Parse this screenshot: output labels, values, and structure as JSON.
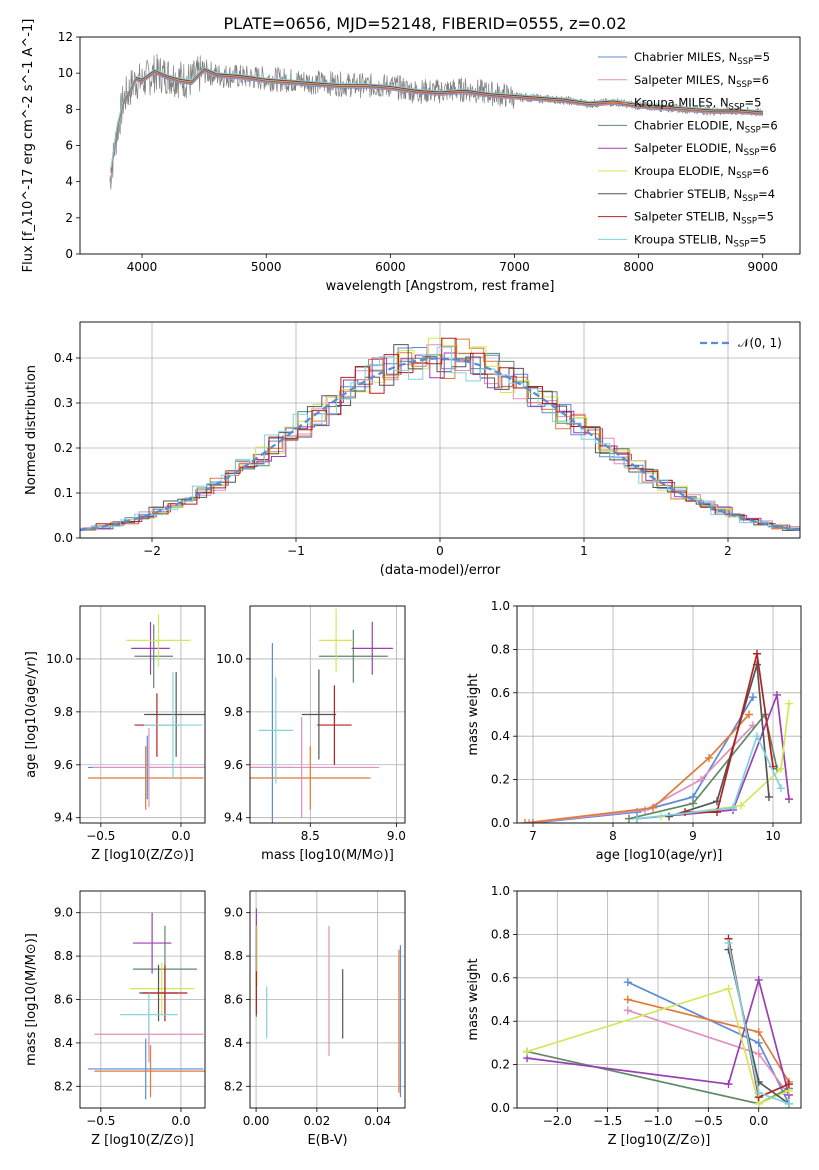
{
  "title": "PLATE=0656, MJD=52148, FIBERID=0555, z=0.02",
  "colors": {
    "chabrier_miles": "#5b8bd6",
    "salpeter_miles": "#e08fbf",
    "kroupa_miles": "#e07b39",
    "chabrier_elodie": "#5f8a68",
    "salpeter_elodie": "#9b3fb5",
    "kroupa_elodie": "#d6e65a",
    "chabrier_stelib": "#555555",
    "salpeter_stelib": "#b22222",
    "kroupa_stelib": "#7fd3dd",
    "data": "#7f7f7f",
    "normal": "#5b8bd6"
  },
  "chart_data": [
    {
      "id": "spectrum",
      "type": "line",
      "xlabel": "wavelength [Angstrom, rest frame]",
      "ylabel": "Flux [f_λ10^-17 erg cm^-2 s^-1 A^-1]",
      "xlim": [
        3500,
        9300
      ],
      "ylim": [
        0,
        12
      ],
      "xticks": [
        4000,
        5000,
        6000,
        7000,
        8000,
        9000
      ],
      "yticks": [
        0,
        2,
        4,
        6,
        8,
        10,
        12
      ],
      "legend_position": "top-right",
      "legend": [
        {
          "key": "chabrier_miles",
          "label": "Chabrier MILES, N",
          "sub": "SSP",
          "suffix": "=5"
        },
        {
          "key": "salpeter_miles",
          "label": "Salpeter MILES, N",
          "sub": "SSP",
          "suffix": "=6"
        },
        {
          "key": "kroupa_miles",
          "label": "Kroupa MILES, N",
          "sub": "SSP",
          "suffix": "=5"
        },
        {
          "key": "chabrier_elodie",
          "label": "Chabrier ELODIE, N",
          "sub": "SSP",
          "suffix": "=6"
        },
        {
          "key": "salpeter_elodie",
          "label": "Salpeter ELODIE, N",
          "sub": "SSP",
          "suffix": "=6"
        },
        {
          "key": "kroupa_elodie",
          "label": "Kroupa ELODIE, N",
          "sub": "SSP",
          "suffix": "=6"
        },
        {
          "key": "chabrier_stelib",
          "label": "Chabrier STELIB, N",
          "sub": "SSP",
          "suffix": "=4"
        },
        {
          "key": "salpeter_stelib",
          "label": "Salpeter STELIB, N",
          "sub": "SSP",
          "suffix": "=5"
        },
        {
          "key": "kroupa_stelib",
          "label": "Kroupa STELIB, N",
          "sub": "SSP",
          "suffix": "=5"
        }
      ],
      "data_spectrum": {
        "x": [
          3750,
          3800,
          3850,
          3900,
          3950,
          4000,
          4100,
          4200,
          4300,
          4400,
          4500,
          4600,
          4800,
          5000,
          5200,
          5400,
          5600,
          5800,
          6000,
          6200,
          6400,
          6600,
          6800,
          7000,
          7200,
          7400,
          7600,
          7800,
          8000,
          8200,
          8400,
          8600,
          8800,
          9000
        ],
        "y": [
          4.5,
          6.8,
          8.5,
          9.1,
          9.6,
          9.5,
          10.0,
          9.9,
          9.7,
          9.6,
          10.1,
          9.9,
          9.8,
          9.7,
          9.6,
          9.5,
          9.4,
          9.3,
          9.3,
          9.0,
          9.0,
          9.1,
          8.9,
          8.7,
          8.6,
          8.5,
          8.3,
          8.4,
          8.2,
          8.1,
          8.0,
          7.9,
          7.9,
          7.8
        ]
      },
      "model_spectrum": {
        "x": [
          3750,
          3800,
          3850,
          3900,
          3950,
          4000,
          4100,
          4200,
          4300,
          4400,
          4500,
          4600,
          4800,
          5000,
          5200,
          5400,
          5600,
          5800,
          6000,
          6200,
          6400,
          6600,
          6800,
          7000,
          7200,
          7400,
          7600,
          7800,
          8000,
          8200,
          8400,
          8600,
          8800,
          9000
        ],
        "y": [
          4.6,
          7.0,
          8.4,
          9.0,
          9.7,
          9.6,
          10.1,
          9.8,
          9.6,
          9.5,
          10.2,
          9.9,
          9.8,
          9.6,
          9.5,
          9.4,
          9.3,
          9.3,
          9.2,
          9.0,
          8.9,
          9.0,
          8.8,
          8.7,
          8.6,
          8.5,
          8.3,
          8.4,
          8.2,
          8.1,
          8.0,
          7.9,
          7.9,
          7.8
        ]
      }
    },
    {
      "id": "residuals",
      "type": "line",
      "xlabel": "(data-model)/error",
      "ylabel": "Normed distribution",
      "xlim": [
        -2.5,
        2.5
      ],
      "ylim": [
        0,
        0.48
      ],
      "xticks": [
        -2,
        -1,
        0,
        1,
        2
      ],
      "yticks": [
        0.0,
        0.1,
        0.2,
        0.3,
        0.4
      ],
      "legend_label": "𝒩(0, 1)",
      "legend_position": "top-right",
      "curve": "normal(0,1)"
    },
    {
      "id": "age_vs_Z",
      "type": "scatter",
      "style": "errorbars",
      "xlabel": "Z [log10(Z/Z⊙)]",
      "ylabel": "age  [log10(age/yr)]",
      "xlim": [
        -0.63,
        0.15
      ],
      "ylim": [
        9.38,
        10.2
      ],
      "xticks": [
        -0.5,
        0.0
      ],
      "yticks": [
        9.4,
        9.6,
        9.8,
        10.0
      ],
      "points": [
        {
          "key": "chabrier_miles",
          "x": -0.21,
          "y": 9.59,
          "xerr": 0.37,
          "yerr": 0.12
        },
        {
          "key": "salpeter_miles",
          "x": -0.2,
          "y": 9.59,
          "xerr": 0.35,
          "yerr": 0.15
        },
        {
          "key": "kroupa_miles",
          "x": -0.22,
          "y": 9.55,
          "xerr": 0.36,
          "yerr": 0.12
        },
        {
          "key": "chabrier_elodie",
          "x": -0.17,
          "y": 10.01,
          "xerr": 0.12,
          "yerr": 0.12
        },
        {
          "key": "salpeter_elodie",
          "x": -0.19,
          "y": 10.04,
          "xerr": 0.12,
          "yerr": 0.1
        },
        {
          "key": "kroupa_elodie",
          "x": -0.14,
          "y": 10.07,
          "xerr": 0.2,
          "yerr": 0.1
        },
        {
          "key": "chabrier_stelib",
          "x": -0.03,
          "y": 9.79,
          "xerr": 0.2,
          "yerr": 0.16
        },
        {
          "key": "salpeter_stelib",
          "x": -0.15,
          "y": 9.75,
          "xerr": 0.14,
          "yerr": 0.12
        },
        {
          "key": "kroupa_stelib",
          "x": -0.05,
          "y": 9.75,
          "xerr": 0.18,
          "yerr": 0.2
        }
      ]
    },
    {
      "id": "age_vs_mass",
      "type": "scatter",
      "style": "errorbars",
      "xlabel": "mass [log10(M/M⊙)]",
      "ylabel": "",
      "xlim": [
        8.15,
        9.05
      ],
      "ylim": [
        9.38,
        10.2
      ],
      "xticks": [
        8.5,
        9.0
      ],
      "yticks": [
        9.4,
        9.6,
        9.8,
        10.0
      ],
      "points": [
        {
          "key": "chabrier_miles",
          "x": 8.28,
          "y": 9.59,
          "xerr": 0.12,
          "yerr": 0.47
        },
        {
          "key": "salpeter_miles",
          "x": 8.45,
          "y": 9.59,
          "xerr": 0.45,
          "yerr": 0.19
        },
        {
          "key": "kroupa_miles",
          "x": 8.5,
          "y": 9.55,
          "xerr": 0.35,
          "yerr": 0.12
        },
        {
          "key": "chabrier_elodie",
          "x": 8.75,
          "y": 10.01,
          "xerr": 0.2,
          "yerr": 0.1
        },
        {
          "key": "salpeter_elodie",
          "x": 8.86,
          "y": 10.04,
          "xerr": 0.12,
          "yerr": 0.1
        },
        {
          "key": "kroupa_elodie",
          "x": 8.65,
          "y": 10.07,
          "xerr": 0.1,
          "yerr": 0.12
        },
        {
          "key": "chabrier_stelib",
          "x": 8.55,
          "y": 9.79,
          "xerr": 0.1,
          "yerr": 0.17
        },
        {
          "key": "salpeter_stelib",
          "x": 8.64,
          "y": 9.75,
          "xerr": 0.1,
          "yerr": 0.15
        },
        {
          "key": "kroupa_stelib",
          "x": 8.3,
          "y": 9.73,
          "xerr": 0.1,
          "yerr": 0.2
        }
      ]
    },
    {
      "id": "weight_vs_age",
      "type": "line",
      "xlabel": "age  [log10(age/yr)]",
      "ylabel": "mass weight",
      "xlim": [
        6.8,
        10.35
      ],
      "ylim": [
        0,
        1.0
      ],
      "xticks": [
        7,
        8,
        9,
        10
      ],
      "yticks": [
        0.0,
        0.2,
        0.4,
        0.6,
        0.8,
        1.0
      ],
      "series": [
        {
          "key": "chabrier_miles",
          "x": [
            7.0,
            8.3,
            9.0,
            9.75
          ],
          "y": [
            0.0,
            0.05,
            0.12,
            0.58
          ]
        },
        {
          "key": "salpeter_miles",
          "x": [
            6.95,
            8.4,
            9.1,
            9.75
          ],
          "y": [
            0.0,
            0.06,
            0.2,
            0.45
          ]
        },
        {
          "key": "kroupa_miles",
          "x": [
            6.9,
            8.5,
            9.2,
            9.7
          ],
          "y": [
            0.0,
            0.07,
            0.3,
            0.5
          ]
        },
        {
          "key": "chabrier_elodie",
          "x": [
            8.2,
            9.0,
            9.9,
            10.05
          ],
          "y": [
            0.02,
            0.09,
            0.5,
            0.25
          ]
        },
        {
          "key": "salpeter_elodie",
          "x": [
            8.3,
            9.5,
            10.05,
            10.2
          ],
          "y": [
            0.02,
            0.06,
            0.59,
            0.11
          ]
        },
        {
          "key": "kroupa_elodie",
          "x": [
            8.6,
            9.6,
            10.1,
            10.2
          ],
          "y": [
            0.03,
            0.08,
            0.25,
            0.55
          ]
        },
        {
          "key": "chabrier_stelib",
          "x": [
            8.7,
            9.3,
            9.8,
            9.95
          ],
          "y": [
            0.03,
            0.1,
            0.73,
            0.12
          ]
        },
        {
          "key": "salpeter_stelib",
          "x": [
            8.9,
            9.3,
            9.8,
            10.0
          ],
          "y": [
            0.05,
            0.05,
            0.78,
            0.26
          ]
        },
        {
          "key": "kroupa_stelib",
          "x": [
            8.3,
            9.5,
            9.8,
            10.1
          ],
          "y": [
            0.02,
            0.07,
            0.4,
            0.16
          ]
        }
      ]
    },
    {
      "id": "mass_vs_Z",
      "type": "scatter",
      "style": "errorbars",
      "xlabel": "Z [log10(Z/Z⊙)]",
      "ylabel": "mass [log10(M/M⊙)]",
      "xlim": [
        -0.63,
        0.15
      ],
      "ylim": [
        8.1,
        9.1
      ],
      "xticks": [
        -0.5,
        0.0
      ],
      "yticks": [
        8.2,
        8.4,
        8.6,
        8.8,
        9.0
      ],
      "points": [
        {
          "key": "chabrier_miles",
          "x": -0.22,
          "y": 8.28,
          "xerr": 0.36,
          "yerr": 0.14
        },
        {
          "key": "salpeter_miles",
          "x": -0.2,
          "y": 8.44,
          "xerr": 0.34,
          "yerr": 0.13
        },
        {
          "key": "kroupa_miles",
          "x": -0.19,
          "y": 8.27,
          "xerr": 0.35,
          "yerr": 0.12
        },
        {
          "key": "chabrier_elodie",
          "x": -0.1,
          "y": 8.74,
          "xerr": 0.2,
          "yerr": 0.2
        },
        {
          "key": "salpeter_elodie",
          "x": -0.18,
          "y": 8.86,
          "xerr": 0.12,
          "yerr": 0.14
        },
        {
          "key": "kroupa_elodie",
          "x": -0.12,
          "y": 8.65,
          "xerr": 0.2,
          "yerr": 0.12
        },
        {
          "key": "chabrier_stelib",
          "x": -0.14,
          "y": 8.63,
          "xerr": 0.12,
          "yerr": 0.13
        },
        {
          "key": "salpeter_stelib",
          "x": -0.1,
          "y": 8.63,
          "xerr": 0.14,
          "yerr": 0.13
        },
        {
          "key": "kroupa_stelib",
          "x": -0.2,
          "y": 8.53,
          "xerr": 0.18,
          "yerr": 0.1
        }
      ]
    },
    {
      "id": "mass_vs_ebv",
      "type": "scatter",
      "style": "errorbars",
      "xlabel": "E(B-V)",
      "ylabel": "",
      "xlim": [
        -0.002,
        0.049
      ],
      "ylim": [
        8.1,
        9.1
      ],
      "xticks": [
        0.0,
        0.02,
        0.04
      ],
      "yticks": [
        8.2,
        8.4,
        8.6,
        8.8,
        9.0
      ],
      "points": [
        {
          "key": "chabrier_miles",
          "x": 0.0475,
          "y": 8.5,
          "yerr": 0.35
        },
        {
          "key": "salpeter_miles",
          "x": 0.024,
          "y": 8.64,
          "yerr": 0.3
        },
        {
          "key": "kroupa_miles",
          "x": 0.047,
          "y": 8.5,
          "yerr": 0.33
        },
        {
          "key": "chabrier_elodie",
          "x": 0.0001,
          "y": 8.72,
          "yerr": 0.2
        },
        {
          "key": "salpeter_elodie",
          "x": 0.0001,
          "y": 8.86,
          "yerr": 0.16
        },
        {
          "key": "kroupa_elodie",
          "x": 0.0003,
          "y": 8.8,
          "yerr": 0.14
        },
        {
          "key": "chabrier_stelib",
          "x": 0.0285,
          "y": 8.58,
          "yerr": 0.16
        },
        {
          "key": "salpeter_stelib",
          "x": 0.0001,
          "y": 8.63,
          "yerr": 0.1
        },
        {
          "key": "kroupa_stelib",
          "x": 0.0035,
          "y": 8.54,
          "yerr": 0.12
        }
      ]
    },
    {
      "id": "weight_vs_Z",
      "type": "line",
      "xlabel": "Z [log10(Z/Z⊙)]",
      "ylabel": "mass weight",
      "xlim": [
        -2.4,
        0.42
      ],
      "ylim": [
        0,
        1.0
      ],
      "xticks": [
        -2.0,
        -1.5,
        -1.0,
        -0.5,
        0.0
      ],
      "yticks": [
        0.0,
        0.2,
        0.4,
        0.6,
        0.8,
        1.0
      ],
      "series": [
        {
          "key": "chabrier_miles",
          "x": [
            -1.3,
            0.0,
            0.3
          ],
          "y": [
            0.58,
            0.3,
            0.02
          ]
        },
        {
          "key": "salpeter_miles",
          "x": [
            -1.3,
            0.0,
            0.3
          ],
          "y": [
            0.45,
            0.25,
            0.06
          ]
        },
        {
          "key": "kroupa_miles",
          "x": [
            -1.3,
            0.0,
            0.3
          ],
          "y": [
            0.5,
            0.35,
            0.12
          ]
        },
        {
          "key": "chabrier_elodie",
          "x": [
            -2.3,
            0.0,
            0.3
          ],
          "y": [
            0.26,
            0.02,
            0.09
          ]
        },
        {
          "key": "salpeter_elodie",
          "x": [
            -2.3,
            -0.3,
            0.0,
            0.3
          ],
          "y": [
            0.23,
            0.11,
            0.59,
            0.06
          ]
        },
        {
          "key": "kroupa_elodie",
          "x": [
            -2.3,
            -0.3,
            0.0,
            0.3
          ],
          "y": [
            0.26,
            0.55,
            0.02,
            0.08
          ]
        },
        {
          "key": "chabrier_stelib",
          "x": [
            -0.3,
            0.0,
            0.3
          ],
          "y": [
            0.73,
            0.12,
            0.02
          ]
        },
        {
          "key": "salpeter_stelib",
          "x": [
            -0.3,
            0.0,
            0.3
          ],
          "y": [
            0.78,
            0.05,
            0.11
          ]
        },
        {
          "key": "kroupa_stelib",
          "x": [
            -0.3,
            0.0,
            0.3
          ],
          "y": [
            0.76,
            0.07,
            0.02
          ]
        }
      ]
    }
  ]
}
